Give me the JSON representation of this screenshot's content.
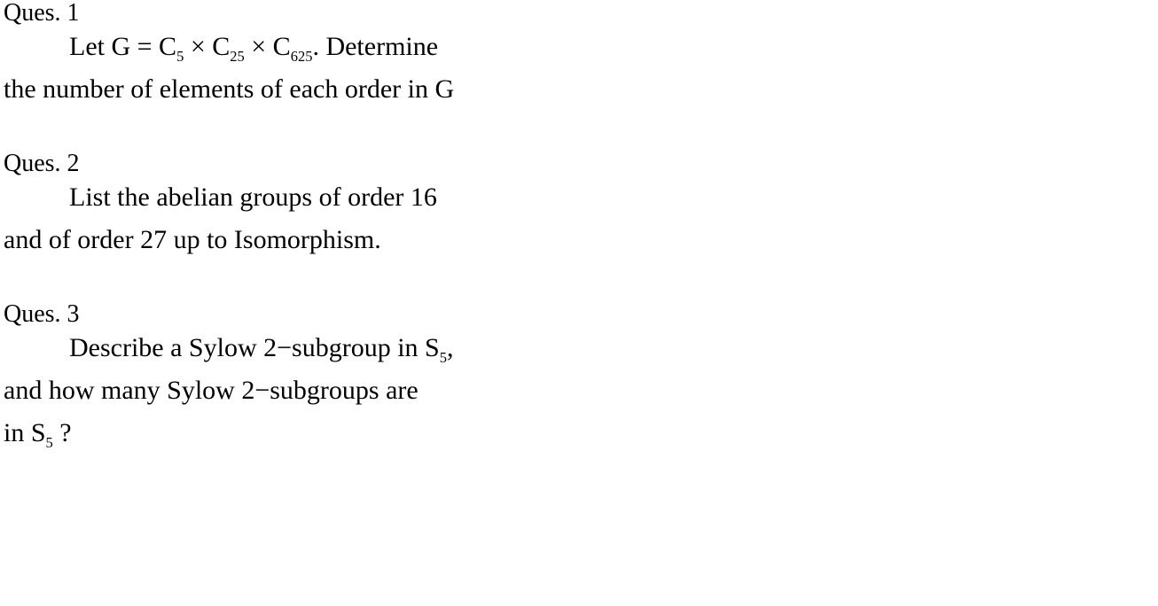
{
  "document": {
    "background_color": "#ffffff",
    "text_color": "#000000",
    "font_family": "Georgia, Times New Roman, serif",
    "header_fontsize": 28,
    "body_fontsize": 30,
    "sub_scale": 0.55,
    "q1": {
      "header": "Ques. 1",
      "line1_pre": "Let G = C",
      "sub1": "5",
      "line1_mid1": " × C",
      "sub2": "25",
      "line1_mid2": " × C",
      "sub3": "625",
      "line1_post": ". Determine",
      "line2": "the number of elements of each order in G"
    },
    "q2": {
      "header": "Ques. 2",
      "line1": "List the abelian groups of order 16",
      "line2": "and of order 27 up to Isomorphism."
    },
    "q3": {
      "header": "Ques. 3",
      "line1_pre": "Describe a Sylow 2−subgroup in S",
      "line1_sub": "5",
      "line1_post": ",",
      "line2": "and how many Sylow 2−subgroups are",
      "line3_pre": "in S",
      "line3_sub": "5",
      "line3_post": " ?"
    }
  }
}
